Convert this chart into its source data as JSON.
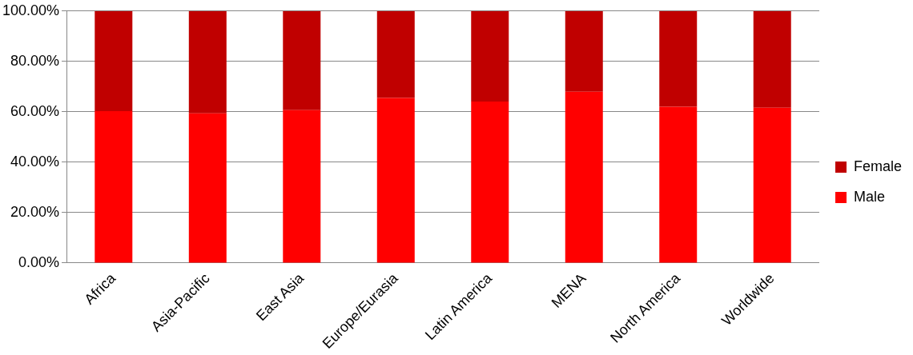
{
  "chart_data": {
    "type": "bar",
    "stacked": true,
    "categories": [
      "Africa",
      "Asia-Pacific",
      "East Asia",
      "Europe/Eurasia",
      "Latin America",
      "MENA",
      "North America",
      "Worldwide"
    ],
    "series": [
      {
        "name": "Male",
        "color": "#ff0000",
        "values": [
          60.3,
          59.4,
          60.7,
          65.5,
          64.1,
          68.0,
          62.0,
          61.6
        ]
      },
      {
        "name": "Female",
        "color": "#c00000",
        "values": [
          39.7,
          40.6,
          39.3,
          34.5,
          35.9,
          32.0,
          38.0,
          38.4
        ]
      }
    ],
    "ylim": [
      0,
      100
    ],
    "yticks": [
      {
        "value": 0,
        "label": "0.00%"
      },
      {
        "value": 20,
        "label": "20.00%"
      },
      {
        "value": 40,
        "label": "40.00%"
      },
      {
        "value": 60,
        "label": "60.00%"
      },
      {
        "value": 80,
        "label": "80.00%"
      },
      {
        "value": 100,
        "label": "100.00%"
      }
    ],
    "grid": "y",
    "legend": "right"
  }
}
